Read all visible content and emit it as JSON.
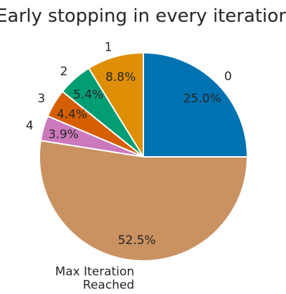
{
  "chart_data": {
    "type": "pie",
    "title": "Early stopping in every iteration",
    "slices": [
      {
        "label": "0",
        "value": 25.0,
        "pct_label": "25.0%",
        "color": "#0173b2"
      },
      {
        "label": "1",
        "value": 8.8,
        "pct_label": "8.8%",
        "color": "#de8f05"
      },
      {
        "label": "2",
        "value": 5.4,
        "pct_label": "5.4%",
        "color": "#029e73"
      },
      {
        "label": "3",
        "value": 4.4,
        "pct_label": "4.4%",
        "color": "#d55e00"
      },
      {
        "label": "4",
        "value": 3.9,
        "pct_label": "3.9%",
        "color": "#cc78bc"
      },
      {
        "label": "Max Iteration\nReached",
        "value": 52.5,
        "pct_label": "52.5%",
        "color": "#ca9161"
      }
    ],
    "start_angle_deg": 0,
    "direction": "counterclockwise",
    "legend": "none"
  }
}
